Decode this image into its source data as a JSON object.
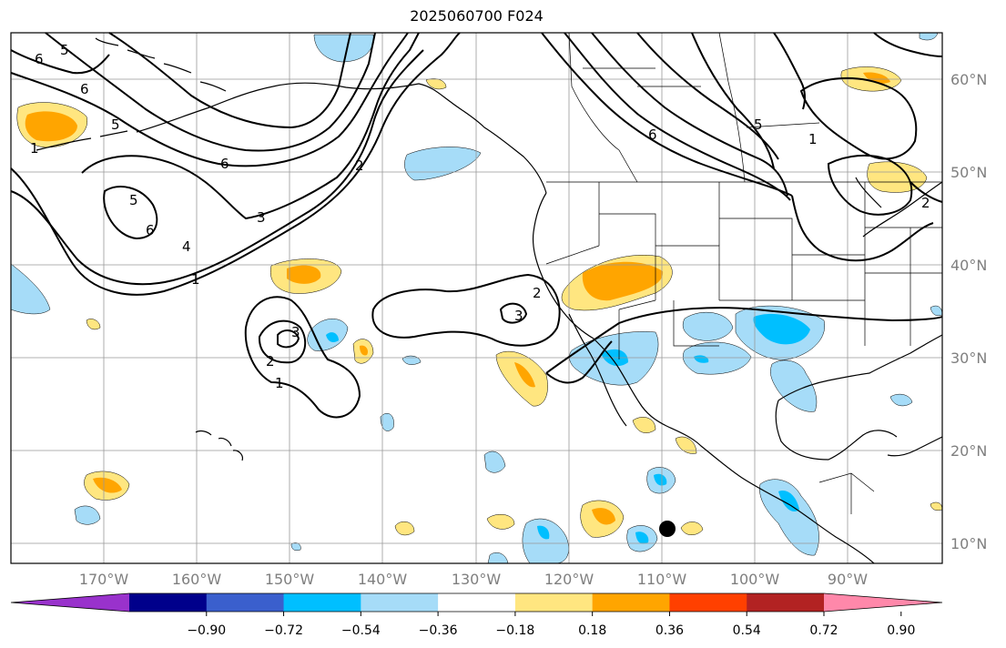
{
  "title": "2025060700 F024",
  "lat_labels": [
    "60°N",
    "50°N",
    "40°N",
    "30°N",
    "20°N",
    "10°N"
  ],
  "lon_labels": [
    "170°W",
    "160°W",
    "150°W",
    "140°W",
    "130°W",
    "120°W",
    "110°W",
    "100°W",
    "90°W"
  ],
  "colorbar": {
    "ticks": [
      "−0.90",
      "−0.72",
      "−0.54",
      "−0.36",
      "−0.18",
      "0.18",
      "0.36",
      "0.54",
      "0.72",
      "0.90"
    ],
    "colors": [
      "#9932cc",
      "#00008b",
      "#3a5fcd",
      "#00bfff",
      "#a6dcf8",
      "#ffffff",
      "#ffe680",
      "#ffa500",
      "#ff4000",
      "#b22222",
      "#ff88aa"
    ]
  },
  "contour_labels": [
    "5",
    "6",
    "6",
    "5",
    "1",
    "6",
    "2",
    "3",
    "4",
    "1",
    "5",
    "6",
    "2",
    "3",
    "2",
    "3",
    "1",
    "6",
    "5",
    "1",
    "2"
  ],
  "colors": {
    "positive_light": "#ffe680",
    "positive": "#ffa500",
    "negative_light": "#a6dcf8",
    "negative": "#00bfff"
  }
}
